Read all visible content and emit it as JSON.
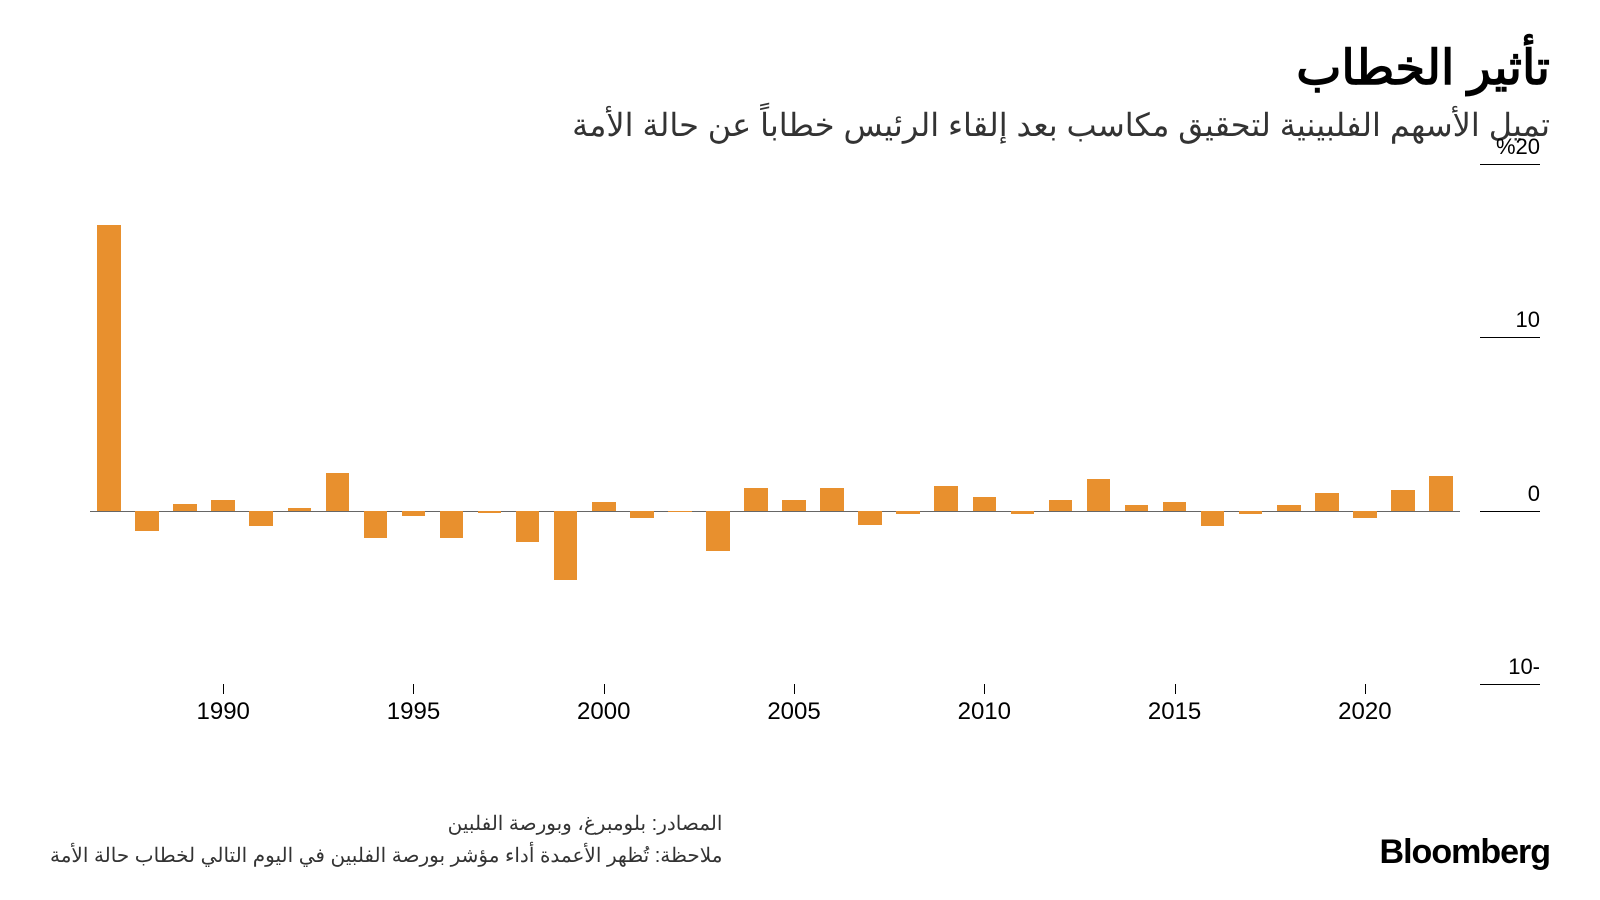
{
  "title": "تأثير الخطاب",
  "subtitle": "تميل الأسهم الفلبينية لتحقيق مكاسب بعد إلقاء الرئيس خطاباً عن حالة الأمة",
  "source": "المصادر: بلومبرغ، وبورصة الفلبين",
  "note": "ملاحظة: تُظهر الأعمدة أداء مؤشر بورصة الفلبين في اليوم التالي لخطاب حالة الأمة",
  "logo": "Bloomberg",
  "chart": {
    "type": "bar",
    "bar_color": "#e8902e",
    "zero_line_color": "#666666",
    "background_color": "#ffffff",
    "ylim": [
      -10,
      20
    ],
    "y_ticks": [
      {
        "value": 20,
        "label": "%20"
      },
      {
        "value": 10,
        "label": "10"
      },
      {
        "value": 0,
        "label": "0"
      },
      {
        "value": -10,
        "label": "10-"
      }
    ],
    "x_ticks": [
      1990,
      1995,
      2000,
      2005,
      2010,
      2015,
      2020
    ],
    "title_fontsize": 48,
    "subtitle_fontsize": 32,
    "tick_fontsize": 22,
    "xtick_fontsize": 24,
    "bar_width_ratio": 0.62,
    "years": [
      1987,
      1988,
      1989,
      1990,
      1991,
      1992,
      1993,
      1994,
      1995,
      1996,
      1997,
      1998,
      1999,
      2000,
      2001,
      2002,
      2003,
      2004,
      2005,
      2006,
      2007,
      2008,
      2009,
      2010,
      2011,
      2012,
      2013,
      2014,
      2015,
      2016,
      2017,
      2018,
      2019,
      2020,
      2021,
      2022
    ],
    "values": [
      16.5,
      -1.2,
      0.4,
      0.6,
      -0.9,
      0.15,
      2.2,
      -1.6,
      -0.3,
      -1.6,
      -0.15,
      -1.8,
      -4.0,
      0.5,
      -0.4,
      -0.1,
      -2.3,
      1.3,
      0.6,
      1.3,
      -0.8,
      -0.2,
      1.4,
      0.8,
      -0.2,
      0.6,
      1.8,
      0.35,
      0.5,
      -0.9,
      -0.2,
      0.3,
      1.0,
      -0.4,
      1.2,
      2.0
    ]
  }
}
